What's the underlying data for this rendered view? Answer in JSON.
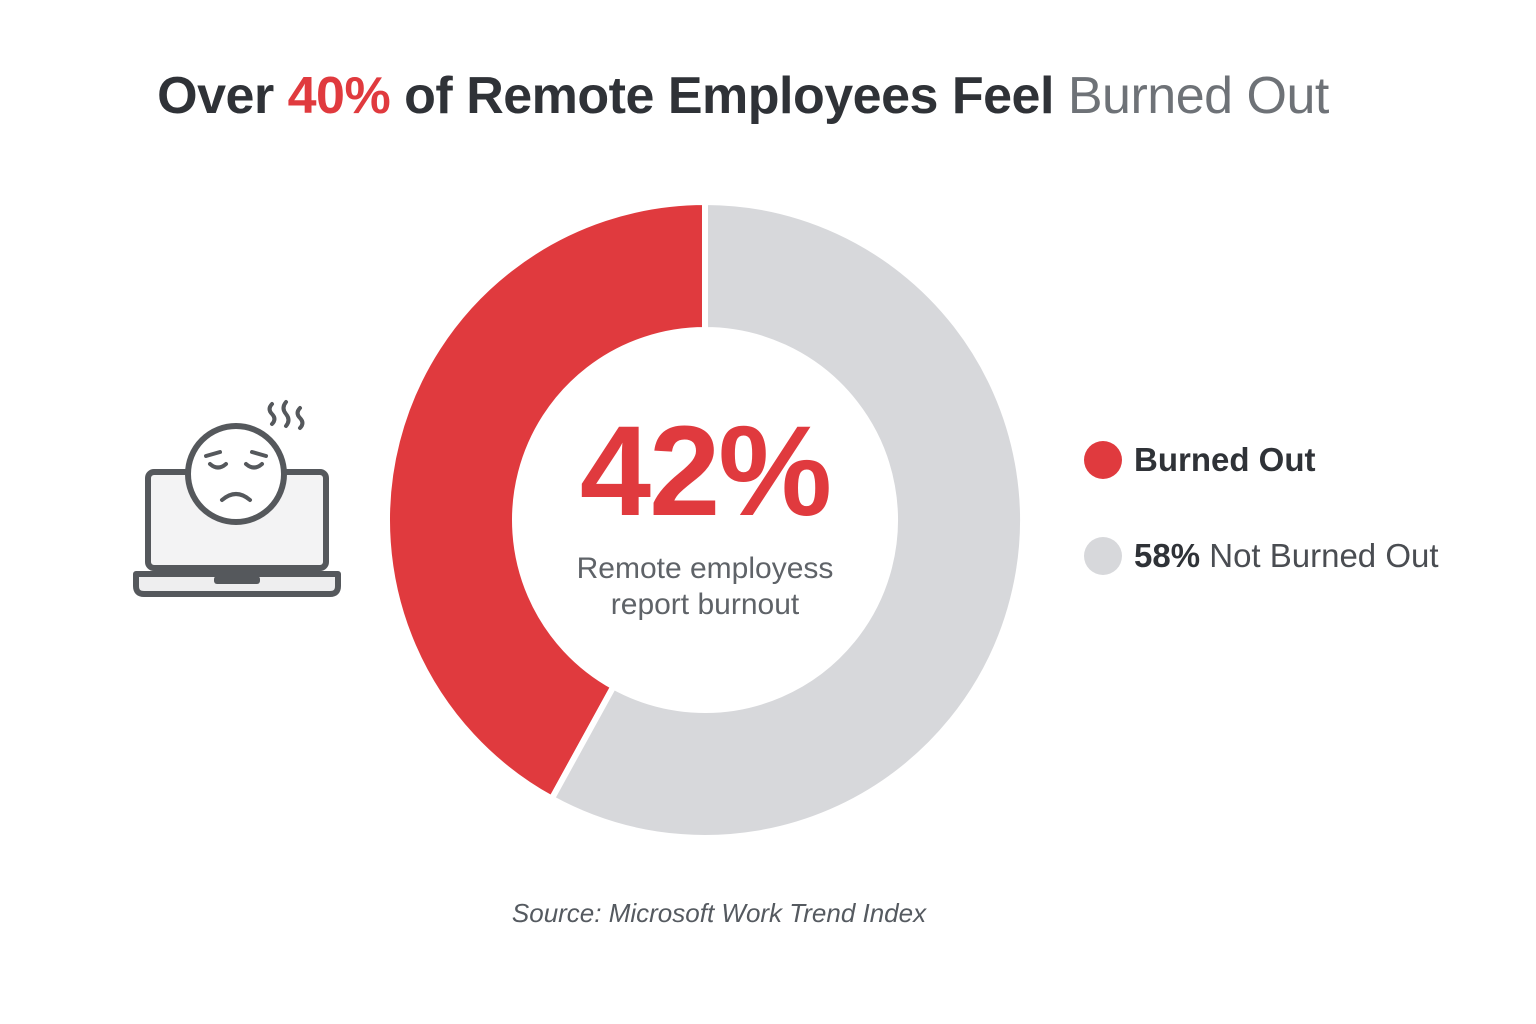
{
  "title": {
    "prefix": "Over ",
    "highlight": "40%",
    "middle": " of Remote Employees Feel ",
    "muted": "Burned Out"
  },
  "chart_data": {
    "type": "pie",
    "variant": "donut",
    "slices": [
      {
        "label": "Burned Out",
        "value": 42,
        "color": "#e03a3e"
      },
      {
        "label": "Not Burned Out",
        "value": 58,
        "color": "#d7d8db"
      }
    ],
    "center_value": "42%",
    "center_caption_line1": "Remote employess",
    "center_caption_line2": "report burnout",
    "legend_position": "right"
  },
  "legend": {
    "burned_label": "Burned Out",
    "not_pct": "58%",
    "not_label": " Not Burned Out"
  },
  "icon": "stressed-laptop-icon",
  "source": "Source: Microsoft Work Trend Index"
}
